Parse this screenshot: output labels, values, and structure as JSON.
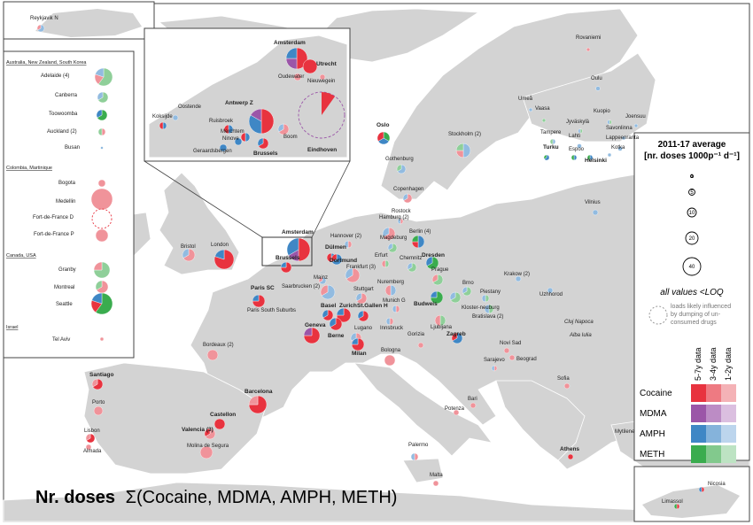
{
  "title_prefix": "Nr. doses",
  "title_formula": "Σ(Cocaine, MDMA, AMPH, METH)",
  "legend": {
    "title_line1": "2011-17 average",
    "title_line2": "[nr. doses 1000p⁻¹ d⁻¹]",
    "sizes": [
      "1",
      "5",
      "10",
      "20",
      "40"
    ],
    "loq_note": "all values <LOQ",
    "dumping_note": [
      "loads likely influenced",
      "by dumping of un-",
      "consumed drugs"
    ],
    "period_headers": [
      "5-7y data",
      "3-4y data",
      "1-2y data"
    ],
    "substances": [
      {
        "name": "Cocaine",
        "colors": [
          "#e8333f",
          "#ee7a82",
          "#f4b2b6"
        ]
      },
      {
        "name": "MDMA",
        "colors": [
          "#9b56a8",
          "#bc8cc5",
          "#dbbfe0"
        ]
      },
      {
        "name": "AMPH",
        "colors": [
          "#3f87c5",
          "#85b3db",
          "#bcd5ed"
        ]
      },
      {
        "name": "METH",
        "colors": [
          "#3aac4e",
          "#82c98d",
          "#bde3c3"
        ]
      }
    ]
  },
  "insets": {
    "iceland": [
      "Reykjavik N"
    ],
    "left_panel": {
      "groups": [
        {
          "heading": "Australia, New Zealand, South Korea",
          "cities": [
            "Adelaide (4)",
            "Canberra",
            "Toowoomba",
            "Auckland (2)",
            "Busan"
          ]
        },
        {
          "heading": "Colombia, Martinique",
          "cities": [
            "Bogota",
            "Medellin",
            "Fort-de-France D",
            "Fort-de-France P"
          ]
        },
        {
          "heading": "Canada, USA",
          "cities": [
            "Granby",
            "Montreal",
            "Seattle"
          ]
        },
        {
          "heading": "Israel",
          "cities": [
            "Tel Aviv"
          ]
        }
      ]
    },
    "benelux": [
      "Amsterdam",
      "Utrecht",
      "Oudewater",
      "Nieuwegein",
      "Oostende",
      "Koksijde",
      "Antwerp Z",
      "Ruisbroek",
      "Merchtem",
      "Ninove",
      "Boom",
      "Eindhoven",
      "Geraardsbergen",
      "Brussels"
    ],
    "cyprus": [
      "Nicosia",
      "Limassol"
    ]
  },
  "cities": [
    "Rovaniemi",
    "Oulu",
    "Umeå",
    "Vaasa",
    "Kuopio",
    "Joensuu",
    "Jyväskylä",
    "Savonlinna",
    "Tampere",
    "Lahti",
    "Lappeenranta",
    "Turku",
    "Espoo",
    "Kotka",
    "Helsinki",
    "Oslo",
    "Stockholm (2)",
    "Gothenburg",
    "Copenhagen",
    "Vilnius",
    "Hamburg (2)",
    "Rostock",
    "Hannover (2)",
    "Berlin (4)",
    "Magdeburg",
    "Dülmen",
    "Amsterdam",
    "Brussels",
    "Dortmund",
    "Erfurt",
    "Chemnitz",
    "Dresden",
    "Mainz",
    "Frankfurt (3)",
    "Prague",
    "Krakow (2)",
    "Saarbrucken (2)",
    "Nuremberg",
    "Stuttgart",
    "Brno",
    "Piestany",
    "Uzhhorod",
    "Paris SC",
    "Paris South Suburbs",
    "Munich G",
    "Budweis",
    "Kloster-neuburg",
    "Bratislava (2)",
    "Basel",
    "Zurich",
    "St.Gallen H",
    "Geneva",
    "Berne",
    "Innsbruck",
    "Lugano",
    "Milan",
    "Ljubljana",
    "Gorizia",
    "Zagreb",
    "Cluj Napoca",
    "Alba Iulia",
    "Novi Sad",
    "Beograd",
    "Sarajevo",
    "Sofia",
    "Bologna",
    "Bordeaux (2)",
    "London",
    "Bristol",
    "Santiago",
    "Porto",
    "Lisbon",
    "Almada",
    "Barcelona",
    "Castellon",
    "Valencia (3)",
    "Molina de Segura",
    "Bari",
    "Potenza",
    "Palermo",
    "Malta",
    "Athens",
    "Mytilene"
  ]
}
